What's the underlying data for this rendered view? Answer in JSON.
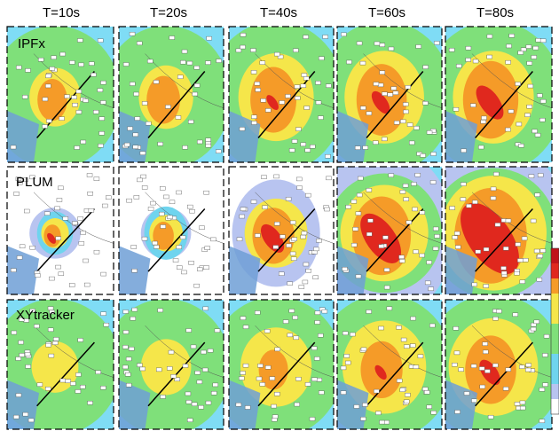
{
  "columns": [
    "T=10s",
    "T=20s",
    "T=40s",
    "T=60s",
    "T=80s"
  ],
  "rows": [
    "IPFx",
    "PLUM",
    "XYtracker"
  ]
}
